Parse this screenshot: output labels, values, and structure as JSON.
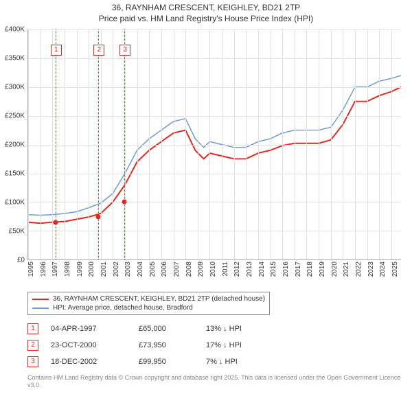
{
  "title_line1": "36, RAYNHAM CRESCENT, KEIGHLEY, BD21 2TP",
  "title_line2": "Price paid vs. HM Land Registry's House Price Index (HPI)",
  "chart": {
    "type": "line",
    "ylim": [
      0,
      400000
    ],
    "ytick_step": 50000,
    "xlim": [
      1995,
      2025.8
    ],
    "xticks": [
      1995,
      1996,
      1997,
      1998,
      1999,
      2000,
      2001,
      2002,
      2003,
      2004,
      2005,
      2006,
      2007,
      2008,
      2009,
      2010,
      2011,
      2012,
      2013,
      2014,
      2015,
      2016,
      2017,
      2018,
      2019,
      2020,
      2021,
      2022,
      2023,
      2024,
      2025
    ],
    "grid_color": "#e0e0e0",
    "series": [
      {
        "name": "hpi",
        "color": "#6b9bd1",
        "width": 1.5,
        "x": [
          1995,
          1996,
          1997,
          1998,
          1999,
          2000,
          2001,
          2002,
          2003,
          2004,
          2005,
          2006,
          2007,
          2008,
          2008.8,
          2009.5,
          2010,
          2011,
          2012,
          2013,
          2014,
          2015,
          2016,
          2017,
          2018,
          2019,
          2020,
          2021,
          2022,
          2023,
          2024,
          2025,
          2025.8
        ],
        "y": [
          78000,
          77000,
          78000,
          80000,
          83000,
          90000,
          98000,
          115000,
          150000,
          190000,
          210000,
          225000,
          240000,
          245000,
          210000,
          195000,
          205000,
          200000,
          195000,
          195000,
          205000,
          210000,
          220000,
          225000,
          225000,
          225000,
          230000,
          260000,
          300000,
          300000,
          310000,
          315000,
          320000
        ]
      },
      {
        "name": "property",
        "color": "#e52620",
        "width": 2,
        "x": [
          1995,
          1996,
          1997,
          1998,
          1999,
          2000,
          2001,
          2002,
          2003,
          2004,
          2005,
          2006,
          2007,
          2008,
          2008.8,
          2009.5,
          2010,
          2011,
          2012,
          2013,
          2014,
          2015,
          2016,
          2017,
          2018,
          2019,
          2020,
          2021,
          2022,
          2023,
          2024,
          2025,
          2025.8
        ],
        "y": [
          65000,
          63000,
          65000,
          66000,
          70000,
          73950,
          80000,
          99950,
          130000,
          170000,
          190000,
          205000,
          220000,
          225000,
          190000,
          175000,
          185000,
          180000,
          175000,
          175000,
          185000,
          190000,
          198000,
          202000,
          202000,
          202000,
          208000,
          235000,
          275000,
          275000,
          285000,
          292000,
          300000
        ]
      }
    ],
    "sale_points": [
      {
        "n": "1",
        "x": 1997.26,
        "y": 65000
      },
      {
        "n": "2",
        "x": 2000.81,
        "y": 73950
      },
      {
        "n": "3",
        "x": 2002.96,
        "y": 99950
      }
    ],
    "marker_vlines": [
      1997.26,
      2000.81,
      2002.96
    ]
  },
  "legend": [
    {
      "color": "#e52620",
      "label": "36, RAYNHAM CRESCENT, KEIGHLEY, BD21 2TP (detached house)"
    },
    {
      "color": "#6b9bd1",
      "label": "HPI: Average price, detached house, Bradford"
    }
  ],
  "sales": [
    {
      "n": "1",
      "date": "04-APR-1997",
      "price": "£65,000",
      "delta": "13% ↓ HPI"
    },
    {
      "n": "2",
      "date": "23-OCT-2000",
      "price": "£73,950",
      "delta": "17% ↓ HPI"
    },
    {
      "n": "3",
      "date": "18-DEC-2002",
      "price": "£99,950",
      "delta": "7% ↓ HPI"
    }
  ],
  "attribution": "Contains HM Land Registry data © Crown copyright and database right 2025. This data is licensed under the Open Government Licence v3.0."
}
